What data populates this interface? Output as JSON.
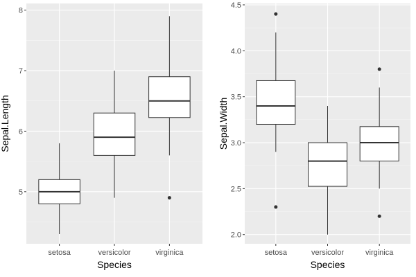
{
  "chart_data": [
    {
      "type": "boxplot",
      "xlabel": "Species",
      "ylabel": "Sepal.Length",
      "categories": [
        "setosa",
        "versicolor",
        "virginica"
      ],
      "ylim": [
        4.14,
        8.11
      ],
      "yticks": [
        5,
        6,
        7,
        8
      ],
      "ytick_labels": [
        "5",
        "6",
        "7",
        "8"
      ],
      "grid": true,
      "boxes": [
        {
          "lower": 4.3,
          "q1": 4.8,
          "median": 5.0,
          "q3": 5.2,
          "upper": 5.8,
          "outliers": []
        },
        {
          "lower": 4.9,
          "q1": 5.6,
          "median": 5.9,
          "q3": 6.3,
          "upper": 7.0,
          "outliers": []
        },
        {
          "lower": 5.6,
          "q1": 6.225,
          "median": 6.5,
          "q3": 6.9,
          "upper": 7.9,
          "outliers": [
            4.9
          ]
        }
      ]
    },
    {
      "type": "boxplot",
      "xlabel": "Species",
      "ylabel": "Sepal.Width",
      "categories": [
        "setosa",
        "versicolor",
        "virginica"
      ],
      "ylim": [
        1.9,
        4.515
      ],
      "yticks": [
        2.0,
        2.5,
        3.0,
        3.5,
        4.0,
        4.5
      ],
      "ytick_labels": [
        "2.0",
        "2.5",
        "3.0",
        "3.5",
        "4.0",
        "4.5"
      ],
      "grid": true,
      "boxes": [
        {
          "lower": 2.9,
          "q1": 3.2,
          "median": 3.4,
          "q3": 3.675,
          "upper": 4.2,
          "outliers": [
            2.3,
            4.4
          ]
        },
        {
          "lower": 2.0,
          "q1": 2.525,
          "median": 2.8,
          "q3": 3.0,
          "upper": 3.4,
          "outliers": []
        },
        {
          "lower": 2.5,
          "q1": 2.8,
          "median": 3.0,
          "q3": 3.175,
          "upper": 3.6,
          "outliers": [
            2.2,
            3.8
          ]
        }
      ]
    }
  ]
}
